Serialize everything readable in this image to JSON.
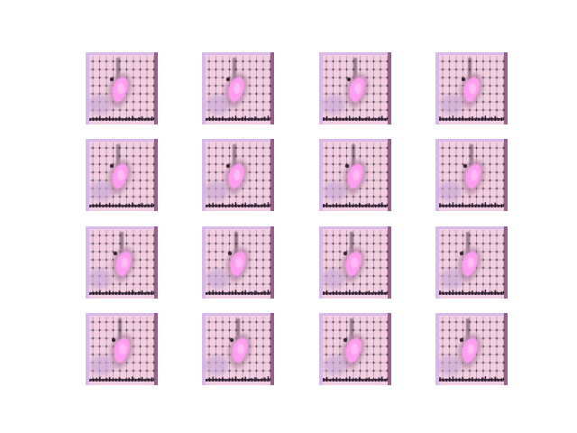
{
  "figure": {
    "grid": {
      "rows": 4,
      "cols": 4
    },
    "tile_icon": "generated-sample-image",
    "palette": {
      "background": "#f1cfe0",
      "border_light": "#d8b9e8",
      "edge_right": "#8a4f78",
      "grid_line": "#2b1a2e",
      "halo": "#b58aa6",
      "blob": "#ff9df0",
      "blob_highlight": "#ffc4f6",
      "shadow": "#c9a8d6"
    },
    "samples": [
      {
        "id": 1,
        "variant": 0
      },
      {
        "id": 2,
        "variant": 1
      },
      {
        "id": 3,
        "variant": 2
      },
      {
        "id": 4,
        "variant": 3
      },
      {
        "id": 5,
        "variant": 1
      },
      {
        "id": 6,
        "variant": 0
      },
      {
        "id": 7,
        "variant": 3
      },
      {
        "id": 8,
        "variant": 2
      },
      {
        "id": 9,
        "variant": 2
      },
      {
        "id": 10,
        "variant": 3
      },
      {
        "id": 11,
        "variant": 0
      },
      {
        "id": 12,
        "variant": 1
      },
      {
        "id": 13,
        "variant": 3
      },
      {
        "id": 14,
        "variant": 2
      },
      {
        "id": 15,
        "variant": 1
      },
      {
        "id": 16,
        "variant": 0
      }
    ]
  }
}
